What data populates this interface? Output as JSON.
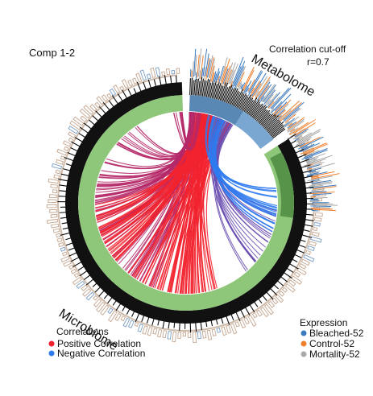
{
  "plot": {
    "title": "Comp 1-2",
    "cutoff_title": "Correlation cut-off",
    "cutoff_value": "r=0.7"
  },
  "blocks": [
    {
      "name": "Metabolome",
      "color": "#4d80b3",
      "fill": "#7aa7d1"
    },
    {
      "name": "Microbiome",
      "color": "#3c7a2c",
      "fill": "#8fc77a"
    }
  ],
  "legend_correlation": {
    "title": "Correlations",
    "items": [
      {
        "label": "Positive Correlation",
        "color": "#f2232f"
      },
      {
        "label": "Negative Correlation",
        "color": "#2f7bf0"
      }
    ]
  },
  "legend_expression": {
    "title": "Expression",
    "items": [
      {
        "label": "Bleached-52",
        "color": "#3c7abf"
      },
      {
        "label": "Control-52",
        "color": "#ee7f2d"
      },
      {
        "label": "Mortality-52",
        "color": "#a9a9a9"
      }
    ]
  },
  "colors": {
    "positive": "#f2232f",
    "positive_muted": "#b52868",
    "negative": "#2f7bf0",
    "negative_muted": "#6a4fb0",
    "outer_bars": "#c4a690",
    "outer_line": "#7a9fc7"
  }
}
